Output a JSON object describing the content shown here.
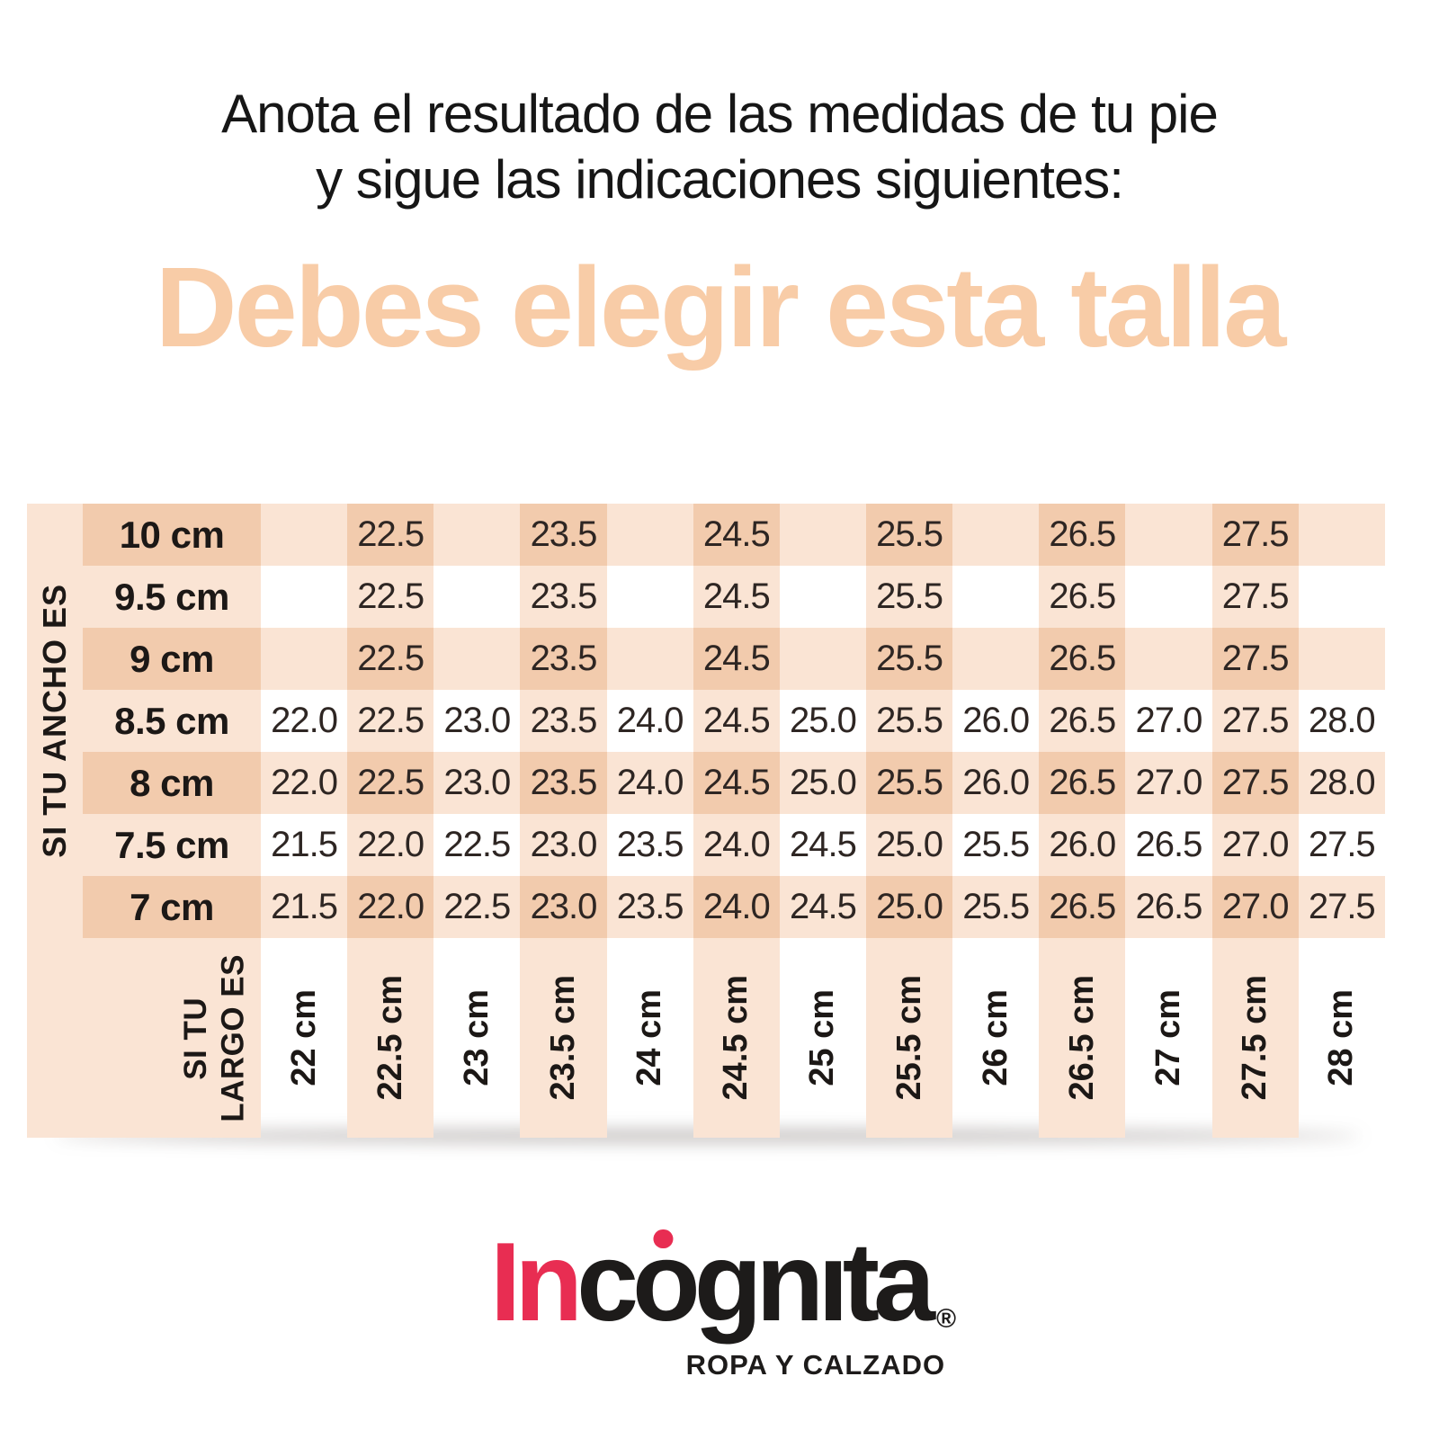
{
  "header": {
    "line1": "Anota el resultado de las medidas de tu pie",
    "line2": "y sigue las indicaciones siguientes:",
    "title": "Debes elegir esta talla"
  },
  "colors": {
    "band_light": "#fae4d4",
    "band_dark": "#f2cbad",
    "title_peach": "#f8cca7",
    "cell_text": "#2e2623",
    "heading_text": "#161616",
    "logo_red": "#e82d52",
    "logo_black": "#1d1b1a"
  },
  "table": {
    "ancho_axis_label": "SI TU ANCHO ES",
    "largo_axis_label_line1": "SI TU",
    "largo_axis_label_line2": "LARGO ES",
    "row_headers": [
      "10 cm",
      "9.5 cm",
      "9 cm",
      "8.5 cm",
      "8 cm",
      "7.5 cm",
      "7 cm"
    ],
    "column_headers": [
      "22 cm",
      "22.5 cm",
      "23 cm",
      "23.5 cm",
      "24 cm",
      "24.5 cm",
      "25 cm",
      "25.5 cm",
      "26 cm",
      "26.5 cm",
      "27 cm",
      "27.5 cm",
      "28 cm"
    ],
    "banded_rows": [
      0,
      2,
      4,
      6
    ],
    "banded_columns": [
      1,
      3,
      5,
      7,
      9,
      11
    ]
  },
  "chart_data": {
    "type": "table",
    "title": "Debes elegir esta talla",
    "x_axis_label": "SI TU LARGO ES",
    "y_axis_label": "SI TU ANCHO ES",
    "columns_length_cm": [
      "22 cm",
      "22.5 cm",
      "23 cm",
      "23.5 cm",
      "24 cm",
      "24.5 cm",
      "25 cm",
      "25.5 cm",
      "26 cm",
      "26.5 cm",
      "27 cm",
      "27.5 cm",
      "28 cm"
    ],
    "rows_width_cm": [
      "10 cm",
      "9.5 cm",
      "9 cm",
      "8.5 cm",
      "8 cm",
      "7.5 cm",
      "7 cm"
    ],
    "sizes": [
      [
        "",
        "22.5",
        "",
        "23.5",
        "",
        "24.5",
        "",
        "25.5",
        "",
        "26.5",
        "",
        "27.5",
        ""
      ],
      [
        "",
        "22.5",
        "",
        "23.5",
        "",
        "24.5",
        "",
        "25.5",
        "",
        "26.5",
        "",
        "27.5",
        ""
      ],
      [
        "",
        "22.5",
        "",
        "23.5",
        "",
        "24.5",
        "",
        "25.5",
        "",
        "26.5",
        "",
        "27.5",
        ""
      ],
      [
        "22.0",
        "22.5",
        "23.0",
        "23.5",
        "24.0",
        "24.5",
        "25.0",
        "25.5",
        "26.0",
        "26.5",
        "27.0",
        "27.5",
        "28.0"
      ],
      [
        "22.0",
        "22.5",
        "23.0",
        "23.5",
        "24.0",
        "24.5",
        "25.0",
        "25.5",
        "26.0",
        "26.5",
        "27.0",
        "27.5",
        "28.0"
      ],
      [
        "21.5",
        "22.0",
        "22.5",
        "23.0",
        "23.5",
        "24.0",
        "24.5",
        "25.0",
        "25.5",
        "26.0",
        "26.5",
        "27.0",
        "27.5"
      ],
      [
        "21.5",
        "22.0",
        "22.5",
        "23.0",
        "23.5",
        "24.0",
        "24.5",
        "25.0",
        "25.5",
        "26.5",
        "26.5",
        "27.0",
        "27.5"
      ]
    ]
  },
  "logo": {
    "part_red": "In",
    "part_c": "c",
    "part_o": "o",
    "part_tail": "gnıta",
    "registered": "®",
    "tagline": "ROPA Y CALZADO"
  }
}
